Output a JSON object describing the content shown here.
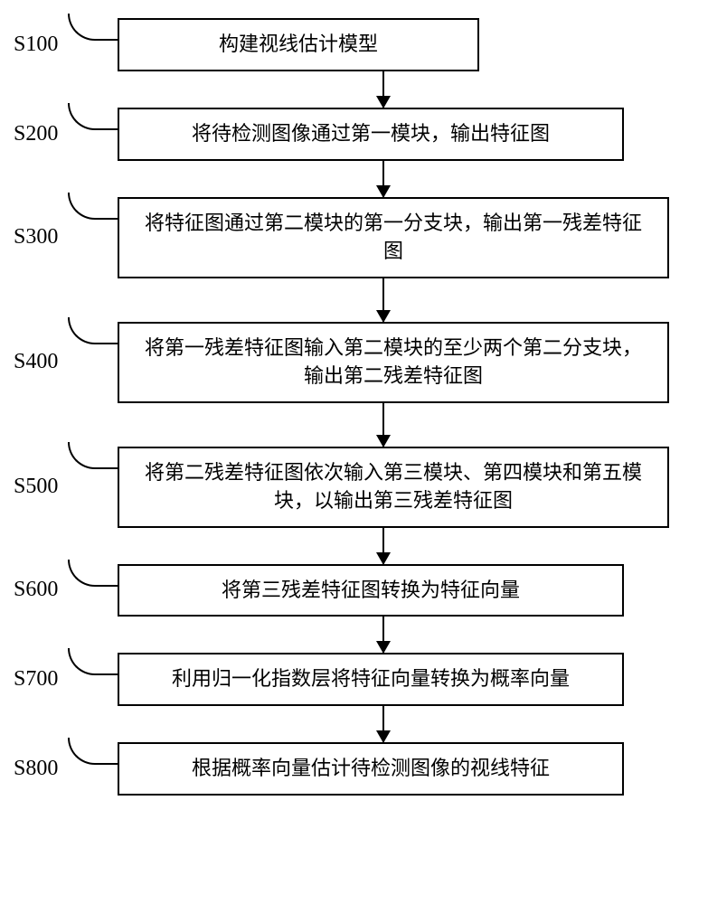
{
  "steps": [
    {
      "id": "S100",
      "text": "构建视线估计模型",
      "box_class": "box-small",
      "arrow_height": 40
    },
    {
      "id": "S200",
      "text": "将待检测图像通过第一模块，输出特征图",
      "box_class": "box-medium",
      "arrow_height": 40
    },
    {
      "id": "S300",
      "text": "将特征图通过第二模块的第一分支块，输出第一残差特征图",
      "box_class": "box-large",
      "arrow_height": 48
    },
    {
      "id": "S400",
      "text": "将第一残差特征图输入第二模块的至少两个第二分支块，输出第二残差特征图",
      "box_class": "box-large",
      "arrow_height": 48
    },
    {
      "id": "S500",
      "text": "将第二残差特征图依次输入第三模块、第四模块和第五模块，以输出第三残差特征图",
      "box_class": "box-large",
      "arrow_height": 40
    },
    {
      "id": "S600",
      "text": "将第三残差特征图转换为特征向量",
      "box_class": "box-medium",
      "arrow_height": 40
    },
    {
      "id": "S700",
      "text": "利用归一化指数层将特征向量转换为概率向量",
      "box_class": "box-medium",
      "arrow_height": 40
    },
    {
      "id": "S800",
      "text": "根据概率向量估计待检测图像的视线特征",
      "box_class": "box-medium",
      "arrow_height": 0
    }
  ],
  "styling": {
    "background_color": "#ffffff",
    "border_color": "#000000",
    "text_color": "#000000",
    "border_width": 2,
    "font_size_box": 22,
    "font_size_label": 24,
    "arrow_head_width": 16,
    "arrow_head_height": 14
  }
}
